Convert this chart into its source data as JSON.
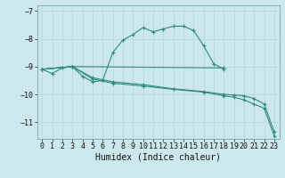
{
  "title": "",
  "xlabel": "Humidex (Indice chaleur)",
  "background_color": "#cce8ec",
  "grid_color": "#b8d8dc",
  "line_color": "#2e8b7a",
  "xlim": [
    -0.5,
    23.5
  ],
  "ylim": [
    -11.6,
    -6.8
  ],
  "xticks": [
    0,
    1,
    2,
    3,
    4,
    5,
    6,
    7,
    8,
    9,
    10,
    11,
    12,
    13,
    14,
    15,
    16,
    17,
    18,
    19,
    20,
    21,
    22,
    23
  ],
  "yticks": [
    -7,
    -8,
    -9,
    -10,
    -11
  ],
  "series": [
    {
      "x": [
        0,
        1,
        2,
        3,
        4,
        5,
        6,
        7,
        8,
        9,
        10,
        11,
        12,
        13,
        14,
        15,
        16,
        17,
        18
      ],
      "y": [
        -9.1,
        -9.25,
        -9.05,
        -9.0,
        -9.35,
        -9.55,
        -9.5,
        -8.5,
        -8.05,
        -7.85,
        -7.6,
        -7.75,
        -7.65,
        -7.55,
        -7.55,
        -7.7,
        -8.25,
        -8.9,
        -9.1
      ]
    },
    {
      "x": [
        0,
        3,
        18
      ],
      "y": [
        -9.1,
        -9.0,
        -9.05
      ]
    },
    {
      "x": [
        0,
        3,
        5,
        7,
        10,
        13,
        16,
        18,
        19,
        20,
        21,
        22,
        23
      ],
      "y": [
        -9.1,
        -9.0,
        -9.4,
        -9.55,
        -9.65,
        -9.8,
        -9.9,
        -10.0,
        -10.02,
        -10.05,
        -10.15,
        -10.35,
        -11.35
      ]
    },
    {
      "x": [
        0,
        3,
        5,
        7,
        10,
        13,
        16,
        18,
        19,
        20,
        21,
        22,
        23
      ],
      "y": [
        -9.1,
        -9.0,
        -9.45,
        -9.6,
        -9.7,
        -9.82,
        -9.92,
        -10.05,
        -10.1,
        -10.2,
        -10.35,
        -10.5,
        -11.5
      ]
    }
  ]
}
